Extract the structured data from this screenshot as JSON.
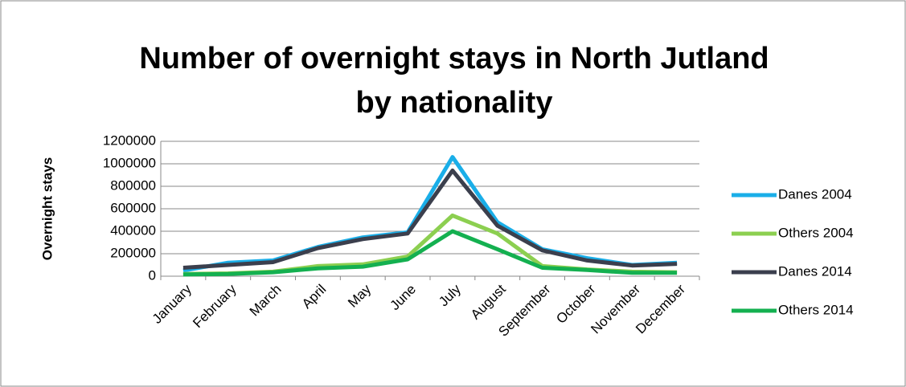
{
  "chart_data": {
    "type": "line",
    "title": [
      "Number of overnight stays in North Jutland",
      "by nationality"
    ],
    "y_label": "Overnight stays",
    "categories": [
      "January",
      "February",
      "March",
      "April",
      "May",
      "June",
      "July",
      "August",
      "September",
      "October",
      "November",
      "December"
    ],
    "series": [
      {
        "name": "Danes 2004",
        "color": "#1aaee8",
        "values": [
          50000,
          120000,
          140000,
          260000,
          345000,
          390000,
          1060000,
          480000,
          240000,
          160000,
          100000,
          120000
        ]
      },
      {
        "name": "Others 2004",
        "color": "#8ccf50",
        "values": [
          20000,
          25000,
          40000,
          90000,
          105000,
          175000,
          540000,
          380000,
          90000,
          60000,
          40000,
          35000
        ]
      },
      {
        "name": "Danes 2014",
        "color": "#3b3f4d",
        "values": [
          75000,
          100000,
          125000,
          250000,
          330000,
          380000,
          940000,
          450000,
          230000,
          140000,
          95000,
          110000
        ]
      },
      {
        "name": "Others 2014",
        "color": "#14b050",
        "values": [
          15000,
          20000,
          35000,
          70000,
          85000,
          150000,
          400000,
          240000,
          75000,
          55000,
          30000,
          30000
        ]
      }
    ],
    "ylim": [
      0,
      1200000
    ],
    "yticks": [
      0,
      200000,
      400000,
      600000,
      800000,
      1000000,
      1200000
    ],
    "grid": true,
    "legend": "right"
  }
}
